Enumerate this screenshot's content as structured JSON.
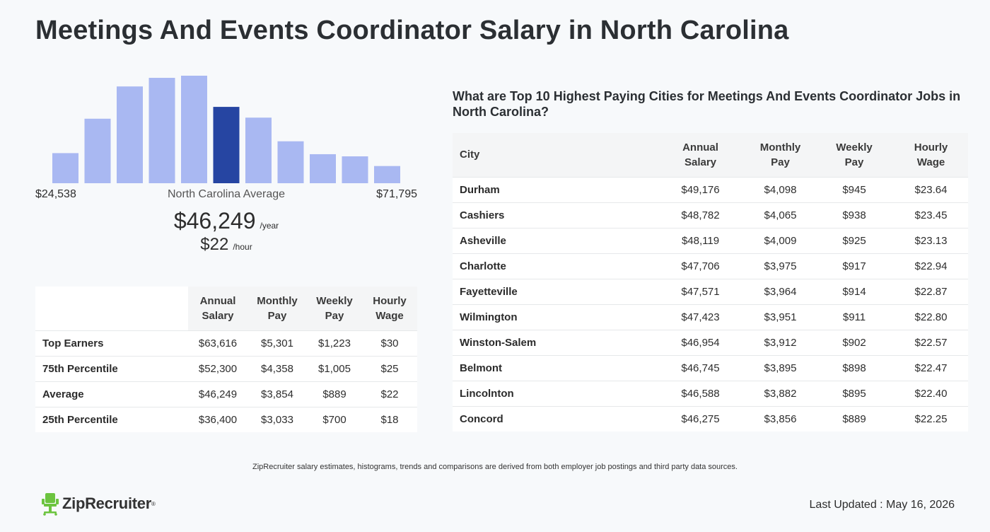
{
  "page": {
    "title": "Meetings And Events Coordinator Salary in North Carolina"
  },
  "histogram": {
    "relative_heights": [
      0.28,
      0.6,
      0.9,
      0.98,
      1.0,
      0.71,
      0.61,
      0.39,
      0.27,
      0.25,
      0.16
    ],
    "highlight_index": 5,
    "bar_color": "#a9b8f2",
    "highlight_color": "#2645a2",
    "min_label": "$24,538",
    "max_label": "$71,795",
    "avg_label": "North Carolina Average",
    "avg_year": "$46,249",
    "avg_year_unit": "/year",
    "avg_hour": "$22",
    "avg_hour_unit": "/hour"
  },
  "percentile_table": {
    "headers": [
      [
        "Annual",
        "Salary"
      ],
      [
        "Monthly",
        "Pay"
      ],
      [
        "Weekly",
        "Pay"
      ],
      [
        "Hourly",
        "Wage"
      ]
    ],
    "rows": [
      {
        "label": "Top Earners",
        "values": [
          "$63,616",
          "$5,301",
          "$1,223",
          "$30"
        ]
      },
      {
        "label": "75th Percentile",
        "values": [
          "$52,300",
          "$4,358",
          "$1,005",
          "$25"
        ]
      },
      {
        "label": "Average",
        "values": [
          "$46,249",
          "$3,854",
          "$889",
          "$22"
        ]
      },
      {
        "label": "25th Percentile",
        "values": [
          "$36,400",
          "$3,033",
          "$700",
          "$18"
        ]
      }
    ]
  },
  "cities": {
    "heading": "What are Top 10 Highest Paying Cities for Meetings And Events Coordinator Jobs in North Carolina?",
    "city_header": "City",
    "headers": [
      [
        "Annual",
        "Salary"
      ],
      [
        "Monthly",
        "Pay"
      ],
      [
        "Weekly",
        "Pay"
      ],
      [
        "Hourly",
        "Wage"
      ]
    ],
    "rows": [
      {
        "label": "Durham",
        "values": [
          "$49,176",
          "$4,098",
          "$945",
          "$23.64"
        ]
      },
      {
        "label": "Cashiers",
        "values": [
          "$48,782",
          "$4,065",
          "$938",
          "$23.45"
        ]
      },
      {
        "label": "Asheville",
        "values": [
          "$48,119",
          "$4,009",
          "$925",
          "$23.13"
        ]
      },
      {
        "label": "Charlotte",
        "values": [
          "$47,706",
          "$3,975",
          "$917",
          "$22.94"
        ]
      },
      {
        "label": "Fayetteville",
        "values": [
          "$47,571",
          "$3,964",
          "$914",
          "$22.87"
        ]
      },
      {
        "label": "Wilmington",
        "values": [
          "$47,423",
          "$3,951",
          "$911",
          "$22.80"
        ]
      },
      {
        "label": "Winston-Salem",
        "values": [
          "$46,954",
          "$3,912",
          "$902",
          "$22.57"
        ]
      },
      {
        "label": "Belmont",
        "values": [
          "$46,745",
          "$3,895",
          "$898",
          "$22.47"
        ]
      },
      {
        "label": "Lincolnton",
        "values": [
          "$46,588",
          "$3,882",
          "$895",
          "$22.40"
        ]
      },
      {
        "label": "Concord",
        "values": [
          "$46,275",
          "$3,856",
          "$889",
          "$22.25"
        ]
      }
    ]
  },
  "footer": {
    "disclaimer": "ZipRecruiter salary estimates, histograms, trends and comparisons are derived from both employer job postings and third party data sources.",
    "logo_text": "ZipRecruiter",
    "logo_icon": "chair-mascot-icon",
    "logo_color": "#6cc43f",
    "last_updated": "Last Updated : May 16, 2026"
  }
}
